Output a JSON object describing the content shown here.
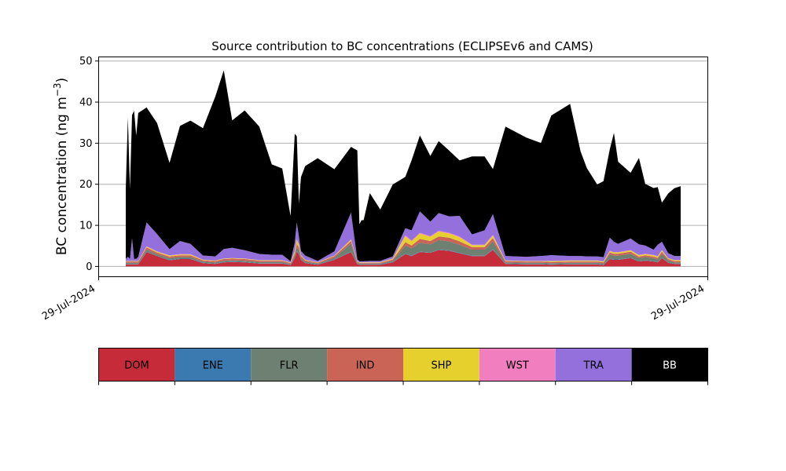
{
  "chart_data": {
    "type": "area",
    "stacked": true,
    "title": "Source contribution to BC concentrations (ECLIPSEv6 and CAMS)",
    "ylabel_main": "BC concentration (ng m",
    "ylabel_sup": "−3",
    "ylabel_close": ")",
    "ylim": [
      -2.5,
      51
    ],
    "yticks": [
      0,
      10,
      20,
      30,
      40,
      50
    ],
    "grid": "horizontal",
    "x_tick_labels": [
      "29-Jul-2024",
      "29-Jul-2024"
    ],
    "x": [
      0.0,
      0.5,
      1.0,
      1.5,
      2.0,
      2.5,
      3.0,
      5.0,
      7.5,
      10.5,
      13.0,
      15.5,
      18.5,
      21.5,
      23.5,
      25.5,
      28.5,
      32.0,
      35.0,
      37.5,
      39.5,
      40.5,
      41.0,
      41.5,
      42.0,
      43.0,
      46.0,
      50.0,
      54.0,
      55.5,
      56.0,
      56.5,
      57.0,
      58.5,
      61.0,
      64.0,
      67.0,
      68.5,
      70.5,
      73.0,
      75.0,
      77.5,
      80.0,
      83.0,
      86.0,
      88.0,
      91.0,
      96.0,
      99.5,
      102.0,
      106.5,
      109.0,
      110.5,
      113.0,
      114.5,
      116.0,
      117.0,
      118.0,
      121.0,
      123.0,
      124.5,
      126.5,
      127.5,
      128.5,
      130.0,
      131.5,
      133.0
    ],
    "series": [
      {
        "name": "DOM",
        "color": "#c62b3a",
        "values": [
          0.5,
          0.5,
          0.5,
          0.5,
          0.5,
          0.5,
          0.5,
          3.5,
          2.5,
          1.5,
          1.8,
          1.8,
          0.8,
          0.6,
          1.0,
          1.1,
          1.0,
          0.7,
          0.7,
          0.7,
          0.3,
          2.0,
          3.6,
          3.0,
          1.6,
          0.8,
          0.4,
          1.6,
          3.5,
          0.5,
          0.4,
          0.4,
          0.4,
          0.4,
          0.4,
          1.0,
          3.0,
          2.5,
          3.5,
          3.3,
          4.0,
          3.8,
          3.2,
          2.5,
          2.5,
          4.0,
          0.6,
          0.5,
          0.5,
          0.4,
          0.5,
          0.5,
          0.5,
          0.5,
          0.3,
          1.8,
          1.6,
          1.6,
          2.0,
          1.2,
          1.4,
          1.2,
          1.0,
          2.0,
          0.9,
          0.6,
          0.6
        ]
      },
      {
        "name": "ENE",
        "color": "#3a7ab1",
        "values": [
          0.1,
          0.1,
          0.1,
          0.1,
          0.1,
          0.1,
          0.1,
          0.1,
          0.1,
          0.1,
          0.1,
          0.1,
          0.1,
          0.1,
          0.1,
          0.1,
          0.1,
          0.1,
          0.1,
          0.1,
          0.1,
          0.1,
          0.1,
          0.1,
          0.1,
          0.1,
          0.1,
          0.1,
          0.1,
          0.1,
          0.1,
          0.1,
          0.1,
          0.1,
          0.1,
          0.1,
          0.1,
          0.1,
          0.1,
          0.1,
          0.1,
          0.1,
          0.1,
          0.1,
          0.1,
          0.1,
          0.1,
          0.1,
          0.1,
          0.1,
          0.1,
          0.1,
          0.1,
          0.1,
          0.1,
          0.1,
          0.1,
          0.1,
          0.1,
          0.1,
          0.1,
          0.1,
          0.1,
          0.1,
          0.1,
          0.1,
          0.1
        ]
      },
      {
        "name": "FLR",
        "color": "#6e8071",
        "values": [
          0.3,
          0.3,
          0.3,
          0.3,
          0.3,
          0.3,
          0.3,
          0.5,
          0.4,
          0.4,
          0.4,
          0.4,
          0.3,
          0.3,
          0.3,
          0.3,
          0.3,
          0.3,
          0.3,
          0.3,
          0.2,
          0.6,
          1.0,
          0.8,
          0.4,
          0.3,
          0.2,
          0.4,
          2.0,
          0.3,
          0.2,
          0.2,
          0.2,
          0.2,
          0.2,
          0.3,
          2.0,
          1.8,
          2.2,
          2.0,
          2.3,
          2.2,
          2.0,
          1.5,
          1.5,
          2.0,
          0.3,
          0.3,
          0.3,
          0.3,
          0.3,
          0.3,
          0.3,
          0.3,
          0.3,
          1.0,
          0.9,
          0.9,
          1.0,
          0.7,
          0.8,
          0.7,
          0.6,
          1.0,
          0.5,
          0.3,
          0.3
        ]
      },
      {
        "name": "IND",
        "color": "#c96457",
        "values": [
          0.3,
          0.3,
          0.3,
          0.3,
          0.3,
          0.3,
          0.3,
          0.5,
          0.4,
          0.4,
          0.4,
          0.4,
          0.3,
          0.3,
          0.4,
          0.4,
          0.4,
          0.3,
          0.3,
          0.3,
          0.2,
          0.5,
          0.8,
          0.7,
          0.4,
          0.3,
          0.2,
          0.4,
          0.6,
          0.2,
          0.2,
          0.2,
          0.2,
          0.2,
          0.2,
          0.3,
          0.8,
          0.7,
          0.9,
          0.8,
          0.9,
          0.9,
          0.8,
          0.6,
          0.6,
          0.8,
          0.3,
          0.3,
          0.3,
          0.3,
          0.3,
          0.3,
          0.3,
          0.3,
          0.3,
          0.5,
          0.5,
          0.5,
          0.5,
          0.4,
          0.4,
          0.4,
          0.4,
          0.5,
          0.3,
          0.3,
          0.3
        ]
      },
      {
        "name": "SHP",
        "color": "#e6d02e",
        "values": [
          0.1,
          0.1,
          0.1,
          0.1,
          0.1,
          0.1,
          0.1,
          0.2,
          0.2,
          0.2,
          0.2,
          0.2,
          0.1,
          0.1,
          0.1,
          0.1,
          0.1,
          0.1,
          0.1,
          0.1,
          0.1,
          0.5,
          1.0,
          0.6,
          0.2,
          0.1,
          0.1,
          0.1,
          0.3,
          0.1,
          0.1,
          0.1,
          0.1,
          0.1,
          0.1,
          0.2,
          1.5,
          1.0,
          1.3,
          1.0,
          1.2,
          1.0,
          1.0,
          0.5,
          0.5,
          0.6,
          0.1,
          0.1,
          0.1,
          0.2,
          0.2,
          0.2,
          0.2,
          0.2,
          0.2,
          0.3,
          0.3,
          0.3,
          0.3,
          0.3,
          0.3,
          0.3,
          0.3,
          0.3,
          0.2,
          0.2,
          0.2
        ]
      },
      {
        "name": "WST",
        "color": "#f17fbf",
        "values": [
          0.05,
          0.05,
          0.05,
          0.05,
          0.05,
          0.05,
          0.05,
          0.1,
          0.1,
          0.1,
          0.1,
          0.1,
          0.05,
          0.05,
          0.05,
          0.05,
          0.05,
          0.05,
          0.05,
          0.05,
          0.05,
          0.1,
          0.2,
          0.1,
          0.05,
          0.05,
          0.05,
          0.05,
          0.1,
          0.05,
          0.05,
          0.05,
          0.05,
          0.05,
          0.05,
          0.05,
          0.2,
          0.2,
          0.2,
          0.2,
          0.2,
          0.2,
          0.2,
          0.1,
          0.1,
          0.2,
          0.05,
          0.05,
          0.05,
          0.05,
          0.05,
          0.05,
          0.05,
          0.05,
          0.05,
          0.1,
          0.1,
          0.1,
          0.1,
          0.1,
          0.1,
          0.1,
          0.1,
          0.1,
          0.05,
          0.05,
          0.05
        ]
      },
      {
        "name": "TRA",
        "color": "#9370db",
        "values": [
          0.5,
          1.0,
          0.5,
          5.5,
          0.5,
          0.5,
          1.0,
          5.8,
          4.2,
          1.5,
          3.2,
          2.5,
          1.0,
          1.0,
          2.3,
          2.5,
          2.0,
          1.5,
          1.3,
          1.3,
          0.3,
          2.0,
          4.0,
          2.0,
          1.0,
          1.0,
          0.3,
          1.0,
          6.5,
          0.5,
          0.2,
          0.2,
          0.2,
          0.3,
          0.3,
          0.5,
          1.7,
          2.5,
          5.2,
          3.5,
          4.3,
          4.0,
          5.0,
          2.5,
          3.5,
          5.0,
          1.1,
          1.0,
          1.2,
          1.4,
          1.1,
          1.1,
          1.0,
          1.0,
          1.0,
          3.2,
          2.5,
          2.0,
          2.8,
          2.6,
          2.0,
          1.3,
          2.8,
          2.0,
          1.2,
          1.0,
          1.0
        ]
      },
      {
        "name": "BB",
        "color": "#000000",
        "values": [
          17.0,
          34.0,
          17.0,
          30.0,
          36.0,
          30.0,
          35.0,
          28.0,
          27.0,
          21.0,
          28.0,
          30.0,
          31.0,
          39.0,
          43.5,
          31.0,
          34.0,
          31.0,
          22.0,
          21.0,
          11.0,
          26.5,
          21.0,
          8.0,
          18.0,
          21.8,
          25.0,
          20.0,
          16.0,
          26.5,
          9.0,
          10.0,
          10.0,
          16.5,
          12.5,
          17.5,
          12.5,
          17.0,
          18.5,
          16.0,
          17.5,
          16.0,
          13.5,
          19.0,
          18.0,
          11.0,
          31.5,
          29.0,
          27.5,
          34.0,
          37.0,
          25.5,
          21.5,
          17.5,
          18.5,
          21.5,
          26.5,
          20.0,
          16.0,
          21.0,
          15.0,
          15.0,
          14.0,
          9.5,
          14.5,
          16.5,
          17.0
        ]
      }
    ]
  },
  "colorbar": {
    "labels": [
      "DOM",
      "ENE",
      "FLR",
      "IND",
      "SHP",
      "WST",
      "TRA",
      "BB"
    ],
    "colors": [
      "#c62b3a",
      "#3a7ab1",
      "#6e8071",
      "#c96457",
      "#e6d02e",
      "#f17fbf",
      "#9370db",
      "#000000"
    ],
    "text_colors": [
      "#000000",
      "#000000",
      "#000000",
      "#000000",
      "#000000",
      "#000000",
      "#000000",
      "#ffffff"
    ]
  }
}
